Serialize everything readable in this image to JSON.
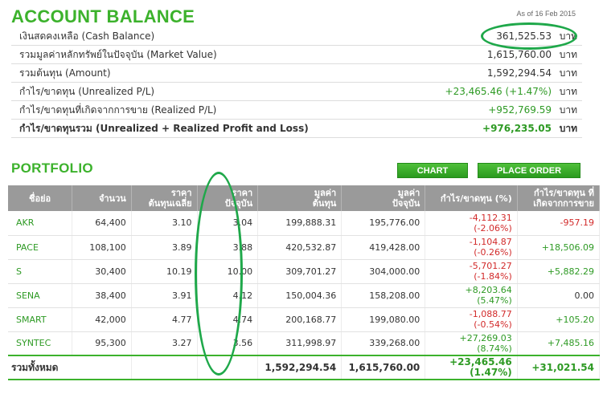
{
  "account": {
    "title": "ACCOUNT BALANCE",
    "as_of": "As of 16 Feb 2015",
    "rows": [
      {
        "label": "เงินสดคงเหลือ (Cash Balance)",
        "value": "361,525.53",
        "unit": "บาท",
        "tone": "neu"
      },
      {
        "label": "รวมมูลค่าหลักทรัพย์ในปัจจุบัน (Market Value)",
        "value": "1,615,760.00",
        "unit": "บาท",
        "tone": "neu"
      },
      {
        "label": "รวมต้นทุน (Amount)",
        "value": "1,592,294.54",
        "unit": "บาท",
        "tone": "neu"
      },
      {
        "label": "กำไร/ขาดทุน (Unrealized P/L)",
        "value": "+23,465.46 (+1.47%)",
        "unit": "บาท",
        "tone": "pos"
      },
      {
        "label": "กำไร/ขาดทุนที่เกิดจากการขาย (Realized P/L)",
        "value": "+952,769.59",
        "unit": "บาท",
        "tone": "pos"
      },
      {
        "label": "กำไร/ขาดทุนรวม (Unrealized + Realized Profit and Loss)",
        "value": "+976,235.05",
        "unit": "บาท",
        "tone": "pos"
      }
    ]
  },
  "portfolio": {
    "title": "PORTFOLIO",
    "chart_label": "CHART",
    "order_label": "PLACE ORDER",
    "headers": {
      "symbol": "ชื่อย่อ",
      "volume": "จำนวน",
      "avg1": "ราคา",
      "avg2": "ต้นทุนเฉลี่ย",
      "mkt1": "ราคา",
      "mkt2": "ปัจจุบัน",
      "amt1": "มูลค่า",
      "amt2": "ต้นทุน",
      "mv1": "มูลค่า",
      "mv2": "ปัจจุบัน",
      "upl": "กำไร/ขาดทุน (%)",
      "rpl1": "กำไร/ขาดทุน ที่",
      "rpl2": "เกิดจากการขาย"
    },
    "rows": [
      {
        "symbol": "AKR",
        "volume": "64,400",
        "avg": "3.10",
        "market": "3.04",
        "amount": "199,888.31",
        "mv": "195,776.00",
        "upl": "-4,112.31",
        "upl_pct": "(-2.06%)",
        "upl_tone": "neg",
        "rpl": "-957.19",
        "rpl_tone": "neg"
      },
      {
        "symbol": "PACE",
        "volume": "108,100",
        "avg": "3.89",
        "market": "3.88",
        "amount": "420,532.87",
        "mv": "419,428.00",
        "upl": "-1,104.87",
        "upl_pct": "(-0.26%)",
        "upl_tone": "neg",
        "rpl": "+18,506.09",
        "rpl_tone": "pos"
      },
      {
        "symbol": "S",
        "volume": "30,400",
        "avg": "10.19",
        "market": "10.00",
        "amount": "309,701.27",
        "mv": "304,000.00",
        "upl": "-5,701.27",
        "upl_pct": "(-1.84%)",
        "upl_tone": "neg",
        "rpl": "+5,882.29",
        "rpl_tone": "pos"
      },
      {
        "symbol": "SENA",
        "volume": "38,400",
        "avg": "3.91",
        "market": "4.12",
        "amount": "150,004.36",
        "mv": "158,208.00",
        "upl": "+8,203.64",
        "upl_pct": "(5.47%)",
        "upl_tone": "pos",
        "rpl": "0.00",
        "rpl_tone": "neu"
      },
      {
        "symbol": "SMART",
        "volume": "42,000",
        "avg": "4.77",
        "market": "4.74",
        "amount": "200,168.77",
        "mv": "199,080.00",
        "upl": "-1,088.77",
        "upl_pct": "(-0.54%)",
        "upl_tone": "neg",
        "rpl": "+105.20",
        "rpl_tone": "pos"
      },
      {
        "symbol": "SYNTEC",
        "volume": "95,300",
        "avg": "3.27",
        "market": "3.56",
        "amount": "311,998.97",
        "mv": "339,268.00",
        "upl": "+27,269.03",
        "upl_pct": "(8.74%)",
        "upl_tone": "pos",
        "rpl": "+7,485.16",
        "rpl_tone": "pos"
      }
    ],
    "total": {
      "label": "รวมทั้งหมด",
      "amount": "1,592,294.54",
      "mv": "1,615,760.00",
      "upl": "+23,465.46",
      "upl_pct": "(1.47%)",
      "rpl": "+31,021.54"
    }
  }
}
